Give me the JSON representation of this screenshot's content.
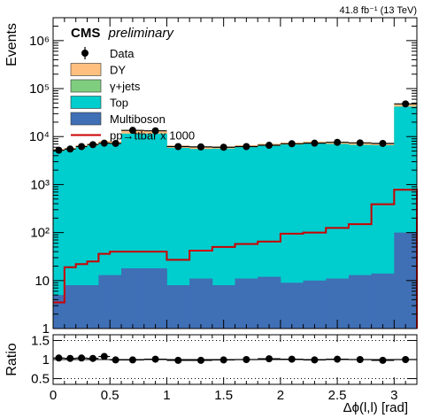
{
  "chart_data": [
    {
      "type": "bar",
      "stacked": true,
      "yscale": "log",
      "lumi_label": "41.8 fb⁻¹ (13 TeV)",
      "experiment": "CMS",
      "status": "preliminary",
      "ylabel": "Events",
      "xlabel": "",
      "xlim": [
        0,
        3.2
      ],
      "ylim": [
        1,
        3000000
      ],
      "y_ticks": [
        {
          "value": 1,
          "label": "1"
        },
        {
          "value": 10,
          "label": "10"
        },
        {
          "value": 100,
          "label": "10²"
        },
        {
          "value": 1000,
          "label": "10³"
        },
        {
          "value": 10000,
          "label": "10⁴"
        },
        {
          "value": 100000,
          "label": "10⁵"
        },
        {
          "value": 1000000,
          "label": "10⁶"
        }
      ],
      "bin_edges": [
        0,
        0.1,
        0.2,
        0.3,
        0.4,
        0.5,
        0.6,
        0.8,
        1.0,
        1.2,
        1.4,
        1.6,
        1.8,
        2.0,
        2.2,
        2.4,
        2.6,
        2.8,
        3.0,
        3.2
      ],
      "series": [
        {
          "name": "Multiboson",
          "color": "#3f6fb5",
          "values": [
            5,
            8,
            8,
            8,
            13,
            13,
            18,
            18,
            8,
            11,
            8,
            11,
            12,
            9,
            10,
            11,
            13,
            14,
            100
          ]
        },
        {
          "name": "Top",
          "color": "#00cdcd",
          "values": [
            5000,
            5300,
            6000,
            6500,
            7200,
            7000,
            11500,
            11500,
            5800,
            5500,
            5600,
            6000,
            6400,
            6800,
            7200,
            7000,
            6700,
            6600,
            42000
          ]
        },
        {
          "name": "γ+jets",
          "color": "#7fcd7f",
          "values": [
            0,
            0,
            0,
            0,
            0,
            0,
            0,
            0,
            0,
            0,
            0,
            0,
            0,
            0,
            0,
            0,
            0,
            0,
            0
          ]
        },
        {
          "name": "DY",
          "color": "#ffc07f",
          "values": [
            500,
            500,
            600,
            700,
            900,
            900,
            1800,
            1800,
            700,
            600,
            600,
            600,
            700,
            700,
            700,
            700,
            700,
            700,
            5000
          ]
        }
      ],
      "overlay_line": {
        "name": "pp→ttbar x 1000",
        "color": "#cc0000",
        "values": [
          3.5,
          19,
          22,
          25,
          36,
          40,
          40,
          40,
          27,
          42,
          50,
          58,
          65,
          95,
          100,
          125,
          150,
          390,
          780
        ]
      },
      "data_points": {
        "name": "Data",
        "x": [
          0.05,
          0.15,
          0.25,
          0.35,
          0.45,
          0.55,
          0.7,
          0.9,
          1.1,
          1.3,
          1.5,
          1.7,
          1.9,
          2.1,
          2.3,
          2.5,
          2.7,
          2.9,
          3.1
        ],
        "values": [
          5200,
          5500,
          6200,
          6800,
          7300,
          7200,
          13500,
          13200,
          6200,
          6100,
          6000,
          6200,
          6600,
          7100,
          7300,
          7600,
          7400,
          7200,
          48000
        ]
      }
    },
    {
      "type": "scatter",
      "ylabel": "Ratio",
      "xlabel": "Δϕ(l,l) [rad]",
      "xlim": [
        0,
        3.2
      ],
      "ylim": [
        0.35,
        1.65
      ],
      "y_ticks": [
        {
          "value": 0.5,
          "label": "0.5"
        },
        {
          "value": 1,
          "label": "1"
        },
        {
          "value": 1.5,
          "label": "1.5"
        }
      ],
      "x_ticks": [
        {
          "value": 0,
          "label": "0"
        },
        {
          "value": 0.5,
          "label": "0.5"
        },
        {
          "value": 1,
          "label": "1"
        },
        {
          "value": 1.5,
          "label": "1.5"
        },
        {
          "value": 2,
          "label": "2"
        },
        {
          "value": 2.5,
          "label": "2.5"
        },
        {
          "value": 3,
          "label": "3"
        }
      ],
      "dotted_lines": [
        0.5,
        1.5
      ],
      "reference_line": 1,
      "x": [
        0.05,
        0.15,
        0.25,
        0.35,
        0.45,
        0.55,
        0.7,
        0.9,
        1.1,
        1.3,
        1.5,
        1.7,
        1.9,
        2.1,
        2.3,
        2.5,
        2.7,
        2.9,
        3.1
      ],
      "x_halfwidth": [
        0.05,
        0.05,
        0.05,
        0.05,
        0.05,
        0.05,
        0.1,
        0.1,
        0.1,
        0.1,
        0.1,
        0.1,
        0.1,
        0.1,
        0.1,
        0.1,
        0.1,
        0.1,
        0.1
      ],
      "values": [
        1.04,
        1.03,
        1.04,
        1.03,
        1.08,
        0.99,
        0.99,
        1.01,
        0.98,
        0.98,
        0.99,
        1.0,
        1.02,
        1.01,
        0.99,
        1.01,
        1.0,
        0.98,
        1.0
      ]
    }
  ]
}
